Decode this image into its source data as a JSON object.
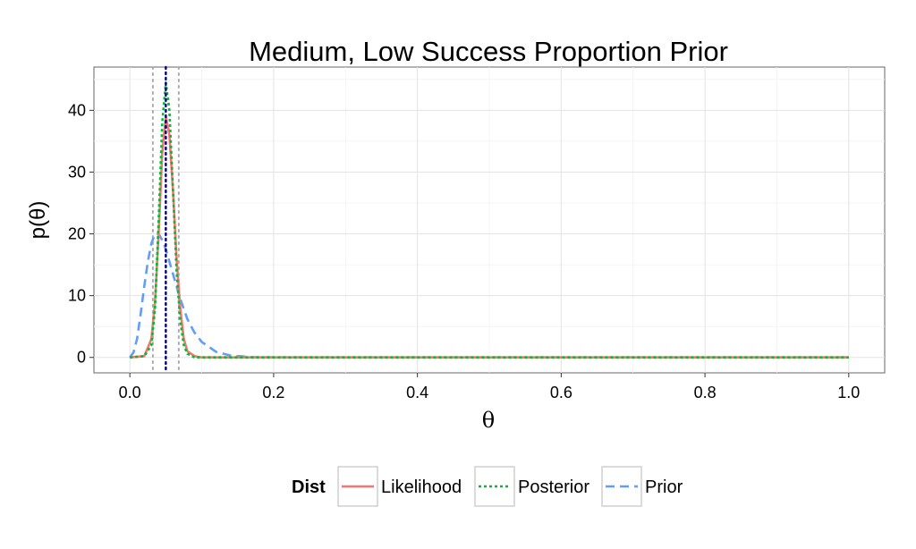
{
  "chart_data": {
    "type": "line",
    "title": "Medium, Low Success Proportion Prior",
    "xlabel": "θ",
    "ylabel": "p(θ)",
    "xlim": [
      -0.05,
      1.05
    ],
    "ylim": [
      -2.5,
      47
    ],
    "x_ticks": [
      0.0,
      0.2,
      0.4,
      0.6,
      0.8,
      1.0
    ],
    "x_tick_labels": [
      "0.0",
      "0.2",
      "0.4",
      "0.6",
      "0.8",
      "1.0"
    ],
    "y_ticks": [
      0,
      10,
      20,
      30,
      40
    ],
    "y_tick_labels": [
      "0",
      "10",
      "20",
      "30",
      "40"
    ],
    "grid": true,
    "legend": {
      "title": "Dist",
      "position": "bottom",
      "entries": [
        "Likelihood",
        "Posterior",
        "Prior"
      ]
    },
    "colors": {
      "Likelihood": "#f8766d",
      "Posterior": "#00ba38",
      "Prior": "#619cff",
      "hdi_line": "#aaaaaa",
      "mode_line": "#000080"
    },
    "series": [
      {
        "name": "Likelihood",
        "dash": "solid",
        "x": [
          0.0,
          0.02,
          0.03,
          0.035,
          0.04,
          0.045,
          0.05,
          0.055,
          0.06,
          0.065,
          0.07,
          0.075,
          0.08,
          0.09,
          0.1,
          0.15,
          1.0
        ],
        "y": [
          0,
          0.2,
          3,
          9,
          20,
          33,
          39,
          36,
          27,
          16,
          8,
          3,
          1,
          0.2,
          0,
          0,
          0
        ]
      },
      {
        "name": "Posterior",
        "dash": "dotted",
        "x": [
          0.0,
          0.02,
          0.03,
          0.035,
          0.04,
          0.045,
          0.05,
          0.055,
          0.06,
          0.065,
          0.07,
          0.075,
          0.08,
          0.09,
          0.1,
          0.15,
          1.0
        ],
        "y": [
          0,
          0.2,
          2,
          8,
          22,
          38,
          44.5,
          40,
          27,
          14,
          6,
          2,
          0.6,
          0,
          0,
          0,
          0
        ]
      },
      {
        "name": "Prior",
        "dash": "dashed",
        "x": [
          0.0,
          0.005,
          0.01,
          0.015,
          0.02,
          0.025,
          0.03,
          0.035,
          0.04,
          0.045,
          0.05,
          0.06,
          0.07,
          0.08,
          0.09,
          0.1,
          0.12,
          0.14,
          0.17,
          0.2,
          1.0
        ],
        "y": [
          0,
          0.8,
          3,
          7,
          11.5,
          15.5,
          18.5,
          20,
          20,
          19,
          17.5,
          13.5,
          9.5,
          6.2,
          4,
          2.5,
          0.9,
          0.3,
          0.05,
          0,
          0
        ]
      }
    ],
    "reference_lines": {
      "hdi_low": 0.032,
      "hdi_high": 0.068,
      "mode": 0.05
    }
  }
}
